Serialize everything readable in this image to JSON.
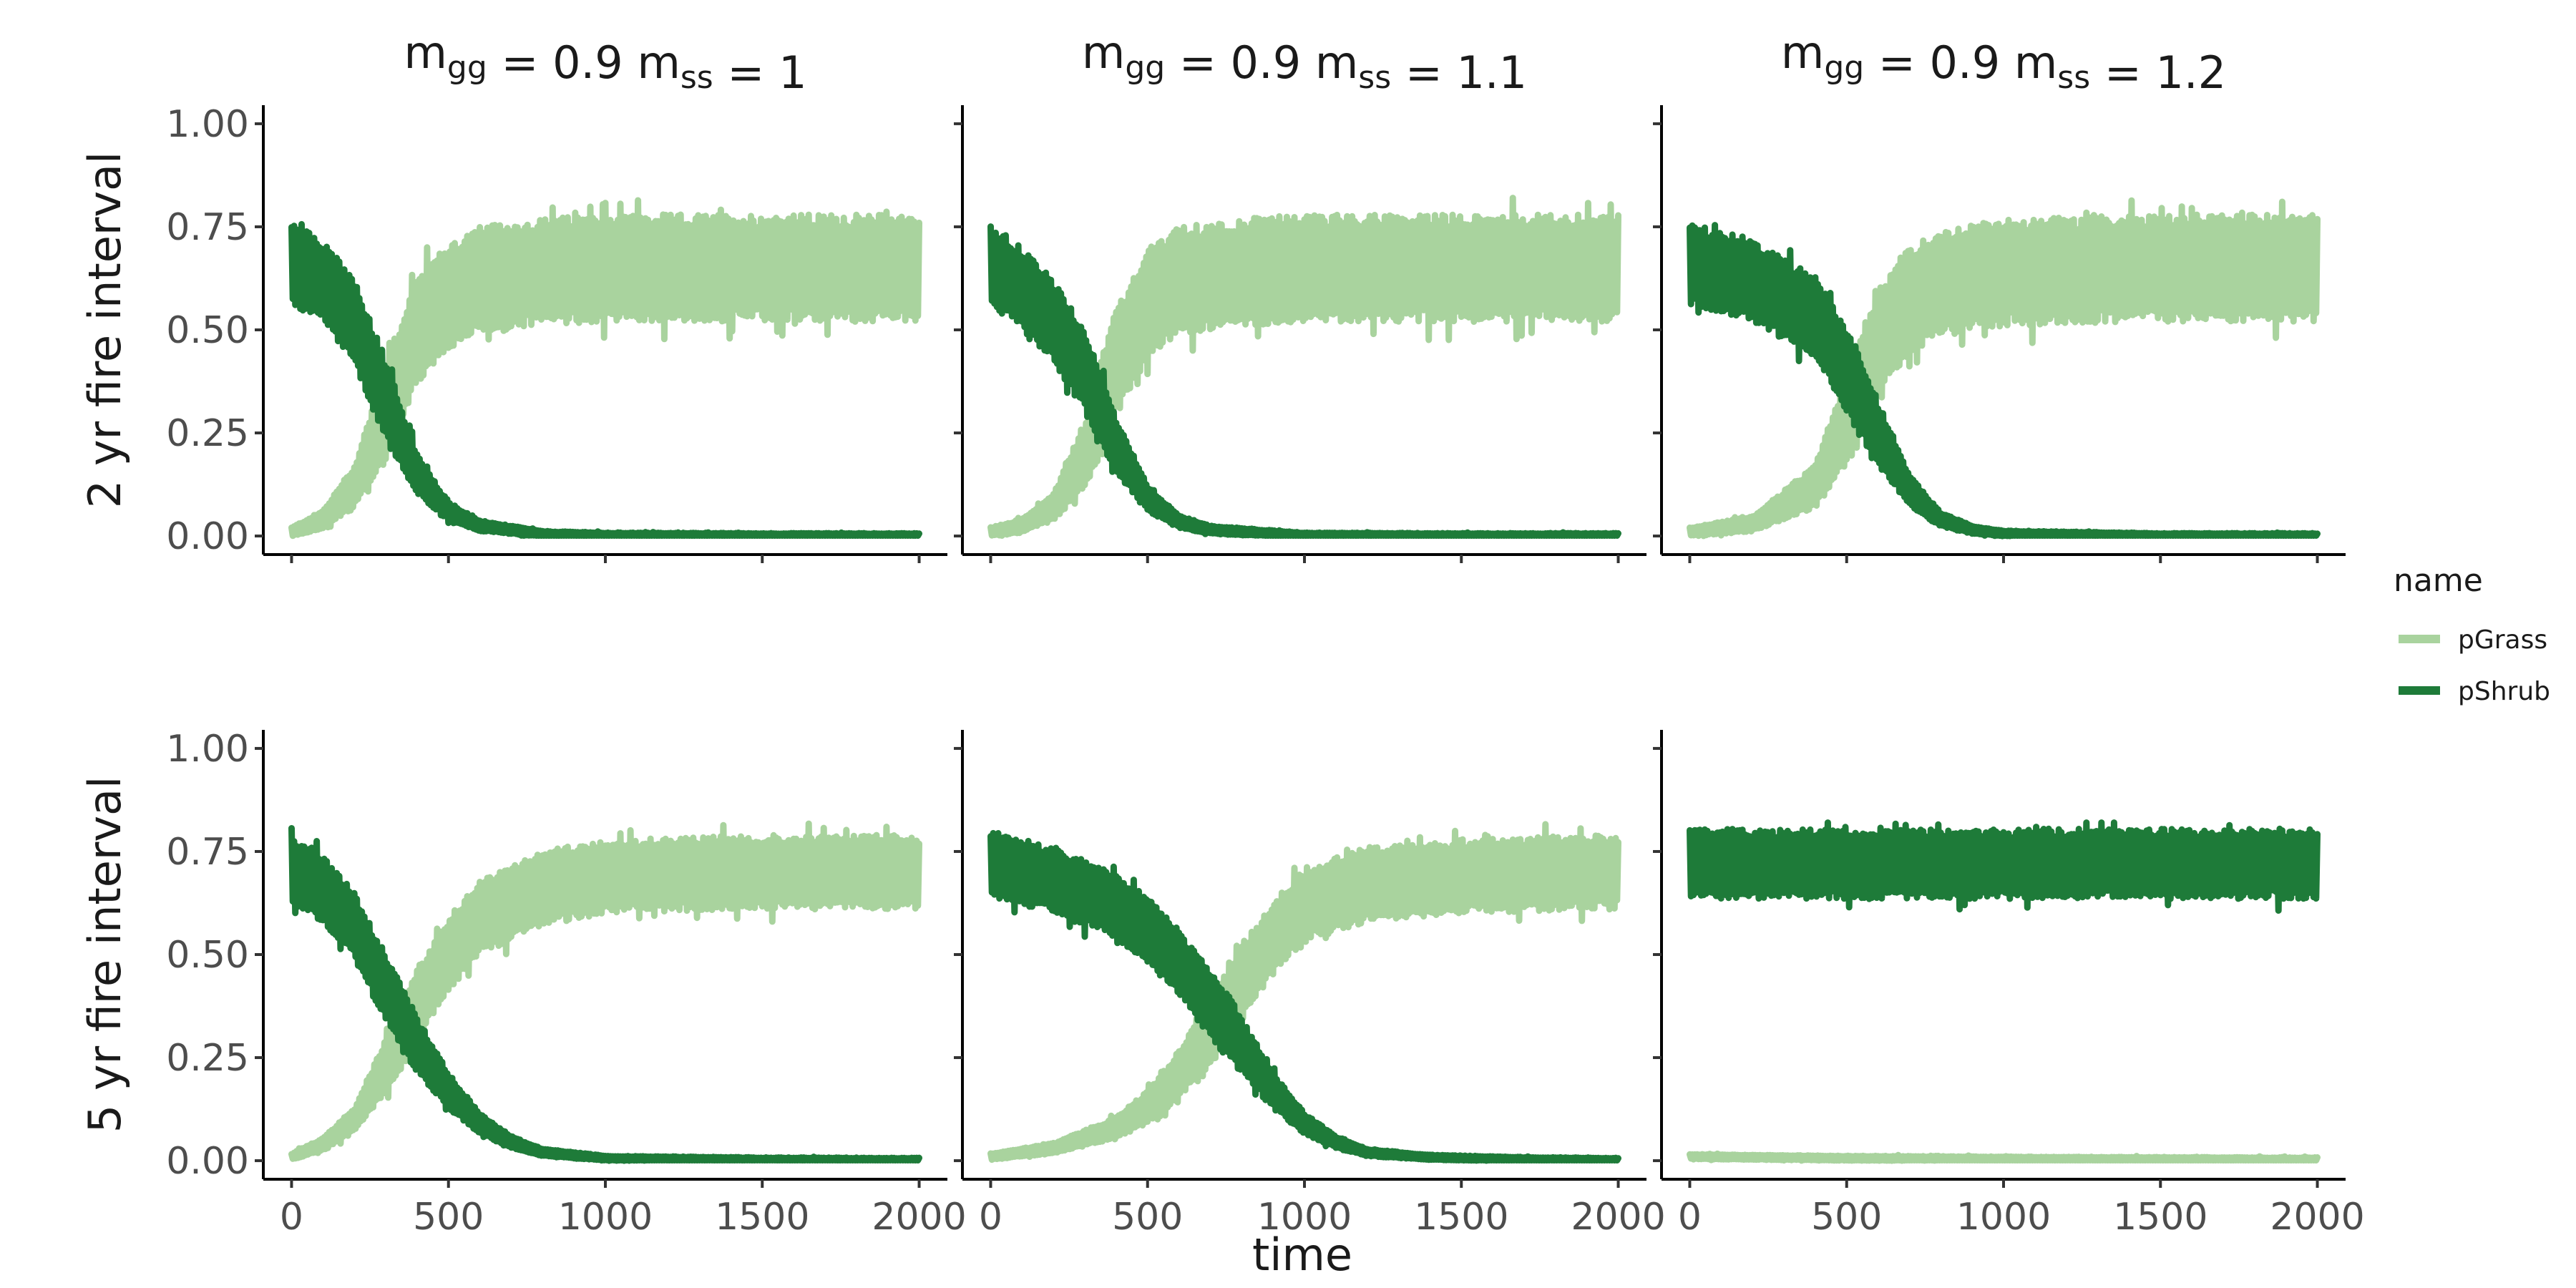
{
  "chart_data": {
    "type": "line",
    "xlabel": "time",
    "ylabel_rows": [
      "2 yr fire interval",
      "5 yr fire interval"
    ],
    "column_strips": [
      {
        "mgg_sym": "m",
        "mgg_sub": "gg",
        "mgg_val": "= 0.9",
        "mss_sym": "m",
        "mss_sub": "ss",
        "mss_val": "= 1"
      },
      {
        "mgg_sym": "m",
        "mgg_sub": "gg",
        "mgg_val": "= 0.9",
        "mss_sym": "m",
        "mss_sub": "ss",
        "mss_val": "= 1.1"
      },
      {
        "mgg_sym": "m",
        "mgg_sub": "gg",
        "mgg_val": "= 0.9",
        "mss_sym": "m",
        "mss_sub": "ss",
        "mss_val": "= 1.2"
      }
    ],
    "xlim": [
      0,
      2000
    ],
    "ylim": [
      0,
      1
    ],
    "x_ticks": [
      0,
      500,
      1000,
      1500,
      2000
    ],
    "x_tick_labels": [
      "0",
      "500",
      "1000",
      "1500",
      "2000"
    ],
    "y_ticks": [
      0,
      0.25,
      0.5,
      0.75,
      1.0
    ],
    "y_tick_labels": [
      "0.00",
      "0.25",
      "0.50",
      "0.75",
      "1.00"
    ],
    "grid": false,
    "legend": {
      "title": "name",
      "placement": "right",
      "entries": [
        {
          "name": "pGrass",
          "color": "#a9d39e"
        },
        {
          "name": "pShrub",
          "color": "#1e7b39"
        }
      ]
    },
    "panels": [
      {
        "row": 0,
        "col": 0,
        "outcome": "grass",
        "pShrub_mean": [
          [
            0,
            0.66
          ],
          [
            100,
            0.62
          ],
          [
            200,
            0.52
          ],
          [
            300,
            0.33
          ],
          [
            400,
            0.15
          ],
          [
            500,
            0.06
          ],
          [
            600,
            0.025
          ],
          [
            800,
            0.005
          ],
          [
            1000,
            0.002
          ],
          [
            1500,
            0.001
          ],
          [
            2000,
            0.001
          ]
        ],
        "pShrub_halfwidth": 0.1,
        "pGrass_mean": [
          [
            0,
            0.01
          ],
          [
            100,
            0.04
          ],
          [
            200,
            0.12
          ],
          [
            300,
            0.3
          ],
          [
            400,
            0.5
          ],
          [
            500,
            0.58
          ],
          [
            600,
            0.62
          ],
          [
            800,
            0.64
          ],
          [
            1000,
            0.65
          ],
          [
            1500,
            0.65
          ],
          [
            2000,
            0.65
          ]
        ],
        "pGrass_halfwidth": 0.13
      },
      {
        "row": 0,
        "col": 1,
        "outcome": "grass",
        "pShrub_mean": [
          [
            0,
            0.66
          ],
          [
            100,
            0.6
          ],
          [
            200,
            0.52
          ],
          [
            300,
            0.4
          ],
          [
            400,
            0.22
          ],
          [
            500,
            0.09
          ],
          [
            600,
            0.035
          ],
          [
            700,
            0.015
          ],
          [
            1000,
            0.002
          ],
          [
            1500,
            0.001
          ],
          [
            2000,
            0.001
          ]
        ],
        "pShrub_halfwidth": 0.1,
        "pGrass_mean": [
          [
            0,
            0.01
          ],
          [
            100,
            0.025
          ],
          [
            200,
            0.07
          ],
          [
            300,
            0.2
          ],
          [
            400,
            0.42
          ],
          [
            500,
            0.56
          ],
          [
            600,
            0.62
          ],
          [
            800,
            0.64
          ],
          [
            1000,
            0.65
          ],
          [
            1500,
            0.65
          ],
          [
            2000,
            0.65
          ]
        ],
        "pGrass_halfwidth": 0.13
      },
      {
        "row": 0,
        "col": 2,
        "outcome": "grass",
        "pShrub_mean": [
          [
            0,
            0.66
          ],
          [
            200,
            0.62
          ],
          [
            400,
            0.53
          ],
          [
            500,
            0.4
          ],
          [
            550,
            0.33
          ],
          [
            600,
            0.25
          ],
          [
            700,
            0.11
          ],
          [
            800,
            0.04
          ],
          [
            900,
            0.015
          ],
          [
            1000,
            0.006
          ],
          [
            1500,
            0.001
          ],
          [
            2000,
            0.001
          ]
        ],
        "pShrub_halfwidth": 0.1,
        "pGrass_mean": [
          [
            0,
            0.01
          ],
          [
            200,
            0.03
          ],
          [
            400,
            0.12
          ],
          [
            500,
            0.28
          ],
          [
            550,
            0.37
          ],
          [
            600,
            0.47
          ],
          [
            700,
            0.57
          ],
          [
            800,
            0.61
          ],
          [
            1000,
            0.64
          ],
          [
            1500,
            0.65
          ],
          [
            2000,
            0.65
          ]
        ],
        "pGrass_halfwidth": 0.13
      },
      {
        "row": 1,
        "col": 0,
        "outcome": "grass",
        "pShrub_mean": [
          [
            0,
            0.7
          ],
          [
            100,
            0.66
          ],
          [
            200,
            0.57
          ],
          [
            300,
            0.42
          ],
          [
            400,
            0.28
          ],
          [
            500,
            0.17
          ],
          [
            600,
            0.09
          ],
          [
            700,
            0.045
          ],
          [
            800,
            0.02
          ],
          [
            1000,
            0.006
          ],
          [
            1500,
            0.002
          ],
          [
            2000,
            0.001
          ]
        ],
        "pShrub_halfwidth": 0.08,
        "pGrass_mean": [
          [
            0,
            0.01
          ],
          [
            100,
            0.04
          ],
          [
            200,
            0.1
          ],
          [
            300,
            0.23
          ],
          [
            400,
            0.38
          ],
          [
            500,
            0.5
          ],
          [
            600,
            0.59
          ],
          [
            800,
            0.66
          ],
          [
            1000,
            0.69
          ],
          [
            1500,
            0.7
          ],
          [
            2000,
            0.7
          ]
        ],
        "pGrass_halfwidth": 0.09
      },
      {
        "row": 1,
        "col": 1,
        "outcome": "grass",
        "pShrub_mean": [
          [
            0,
            0.72
          ],
          [
            200,
            0.68
          ],
          [
            400,
            0.62
          ],
          [
            500,
            0.56
          ],
          [
            600,
            0.48
          ],
          [
            700,
            0.38
          ],
          [
            800,
            0.28
          ],
          [
            900,
            0.17
          ],
          [
            1000,
            0.09
          ],
          [
            1100,
            0.045
          ],
          [
            1200,
            0.02
          ],
          [
            1400,
            0.008
          ],
          [
            1700,
            0.003
          ],
          [
            2000,
            0.001
          ]
        ],
        "pShrub_halfwidth": 0.08,
        "pGrass_mean": [
          [
            0,
            0.01
          ],
          [
            200,
            0.03
          ],
          [
            400,
            0.08
          ],
          [
            500,
            0.13
          ],
          [
            600,
            0.21
          ],
          [
            700,
            0.32
          ],
          [
            800,
            0.43
          ],
          [
            900,
            0.54
          ],
          [
            1000,
            0.62
          ],
          [
            1200,
            0.67
          ],
          [
            1500,
            0.69
          ],
          [
            2000,
            0.7
          ]
        ],
        "pGrass_halfwidth": 0.09
      },
      {
        "row": 1,
        "col": 2,
        "outcome": "shrub",
        "pShrub_mean": [
          [
            0,
            0.72
          ],
          [
            500,
            0.72
          ],
          [
            1000,
            0.72
          ],
          [
            1500,
            0.72
          ],
          [
            2000,
            0.72
          ]
        ],
        "pShrub_halfwidth": 0.085,
        "pGrass_mean": [
          [
            0,
            0.01
          ],
          [
            500,
            0.006
          ],
          [
            1000,
            0.004
          ],
          [
            1500,
            0.003
          ],
          [
            2000,
            0.002
          ]
        ],
        "pGrass_halfwidth": 0.004
      }
    ]
  }
}
